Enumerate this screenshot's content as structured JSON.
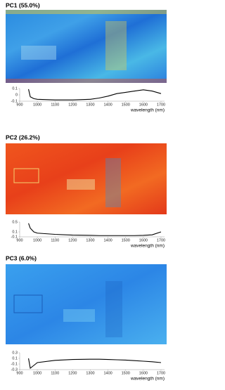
{
  "chart_data": [
    {
      "type": "line",
      "title": "PC1 (55.0%)",
      "xlabel": "wavelength (nm)",
      "color": "#000000",
      "x": [
        950,
        960,
        980,
        1000,
        1100,
        1200,
        1300,
        1350,
        1400,
        1450,
        1500,
        1550,
        1600,
        1650,
        1700
      ],
      "values": [
        0.09,
        -0.03,
        -0.06,
        -0.07,
        -0.08,
        -0.08,
        -0.07,
        -0.05,
        -0.02,
        0.02,
        0.04,
        0.06,
        0.08,
        0.06,
        0.02
      ],
      "xlim": [
        900,
        1720
      ],
      "xticks": [
        900,
        1000,
        1100,
        1200,
        1300,
        1400,
        1500,
        1600,
        1700
      ],
      "ylim": [
        -0.1,
        0.1
      ],
      "yticks": [
        -0.1,
        0,
        0.1
      ]
    },
    {
      "type": "line",
      "title": "PC2 (26.2%)",
      "xlabel": "wavelength (nm)",
      "color": "#000000",
      "x": [
        950,
        960,
        980,
        1000,
        1100,
        1200,
        1300,
        1350,
        1400,
        1450,
        1500,
        1550,
        1600,
        1650,
        1700
      ],
      "values": [
        0.45,
        0.25,
        0.1,
        0.05,
        0.0,
        -0.03,
        -0.04,
        -0.05,
        -0.05,
        -0.05,
        -0.05,
        -0.05,
        -0.04,
        -0.02,
        0.1
      ],
      "xlim": [
        900,
        1720
      ],
      "xticks": [
        900,
        1000,
        1100,
        1200,
        1300,
        1400,
        1500,
        1600,
        1700
      ],
      "ylim": [
        -0.1,
        0.5
      ],
      "yticks": [
        -0.1,
        0.1,
        0.5
      ]
    },
    {
      "type": "line",
      "title": "PC3 (6.0%)",
      "xlabel": "wavelength (nm)",
      "color": "#000000",
      "x": [
        950,
        960,
        980,
        1000,
        1100,
        1200,
        1300,
        1350,
        1400,
        1450,
        1500,
        1550,
        1600,
        1650,
        1700
      ],
      "values": [
        0.1,
        -0.25,
        -0.15,
        -0.05,
        0.03,
        0.06,
        0.07,
        0.07,
        0.06,
        0.05,
        0.04,
        0.02,
        0.0,
        -0.02,
        -0.05
      ],
      "xlim": [
        900,
        1720
      ],
      "xticks": [
        900,
        1000,
        1100,
        1200,
        1300,
        1400,
        1500,
        1600,
        1700
      ],
      "ylim": [
        -0.3,
        0.3
      ],
      "yticks": [
        -0.3,
        -0.1,
        0.1,
        0.3
      ]
    }
  ]
}
